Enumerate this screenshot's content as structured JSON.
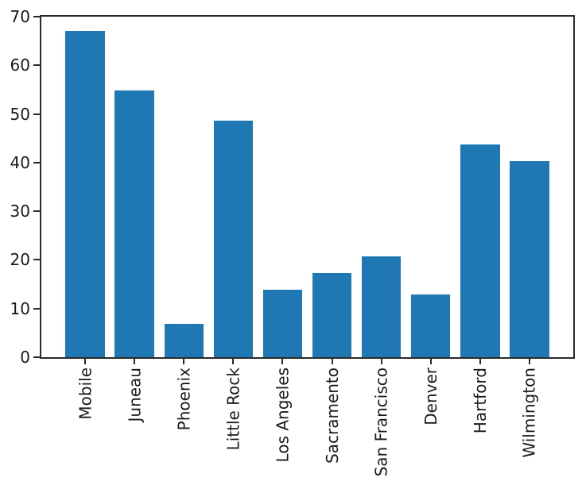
{
  "figure": {
    "background": "#ffffff",
    "spine_color": "#2a2a2a",
    "text_color": "#1a1a1a"
  },
  "chart_data": {
    "type": "bar",
    "title": "",
    "xlabel": "",
    "ylabel": "",
    "categories": [
      "Mobile",
      "Juneau",
      "Phoenix",
      "Little Rock",
      "Los Angeles",
      "Sacramento",
      "San Francisco",
      "Denver",
      "Hartford",
      "Wilmington"
    ],
    "values": [
      67.1,
      54.9,
      6.8,
      48.7,
      13.8,
      17.3,
      20.8,
      12.9,
      43.7,
      40.3
    ],
    "bar_color": "#1f77b4",
    "ylim": [
      0,
      70
    ],
    "yticks": [
      0,
      10,
      20,
      30,
      40,
      50,
      60,
      70
    ],
    "xtick_rotation": "vertical",
    "grid": false,
    "legend": null
  }
}
